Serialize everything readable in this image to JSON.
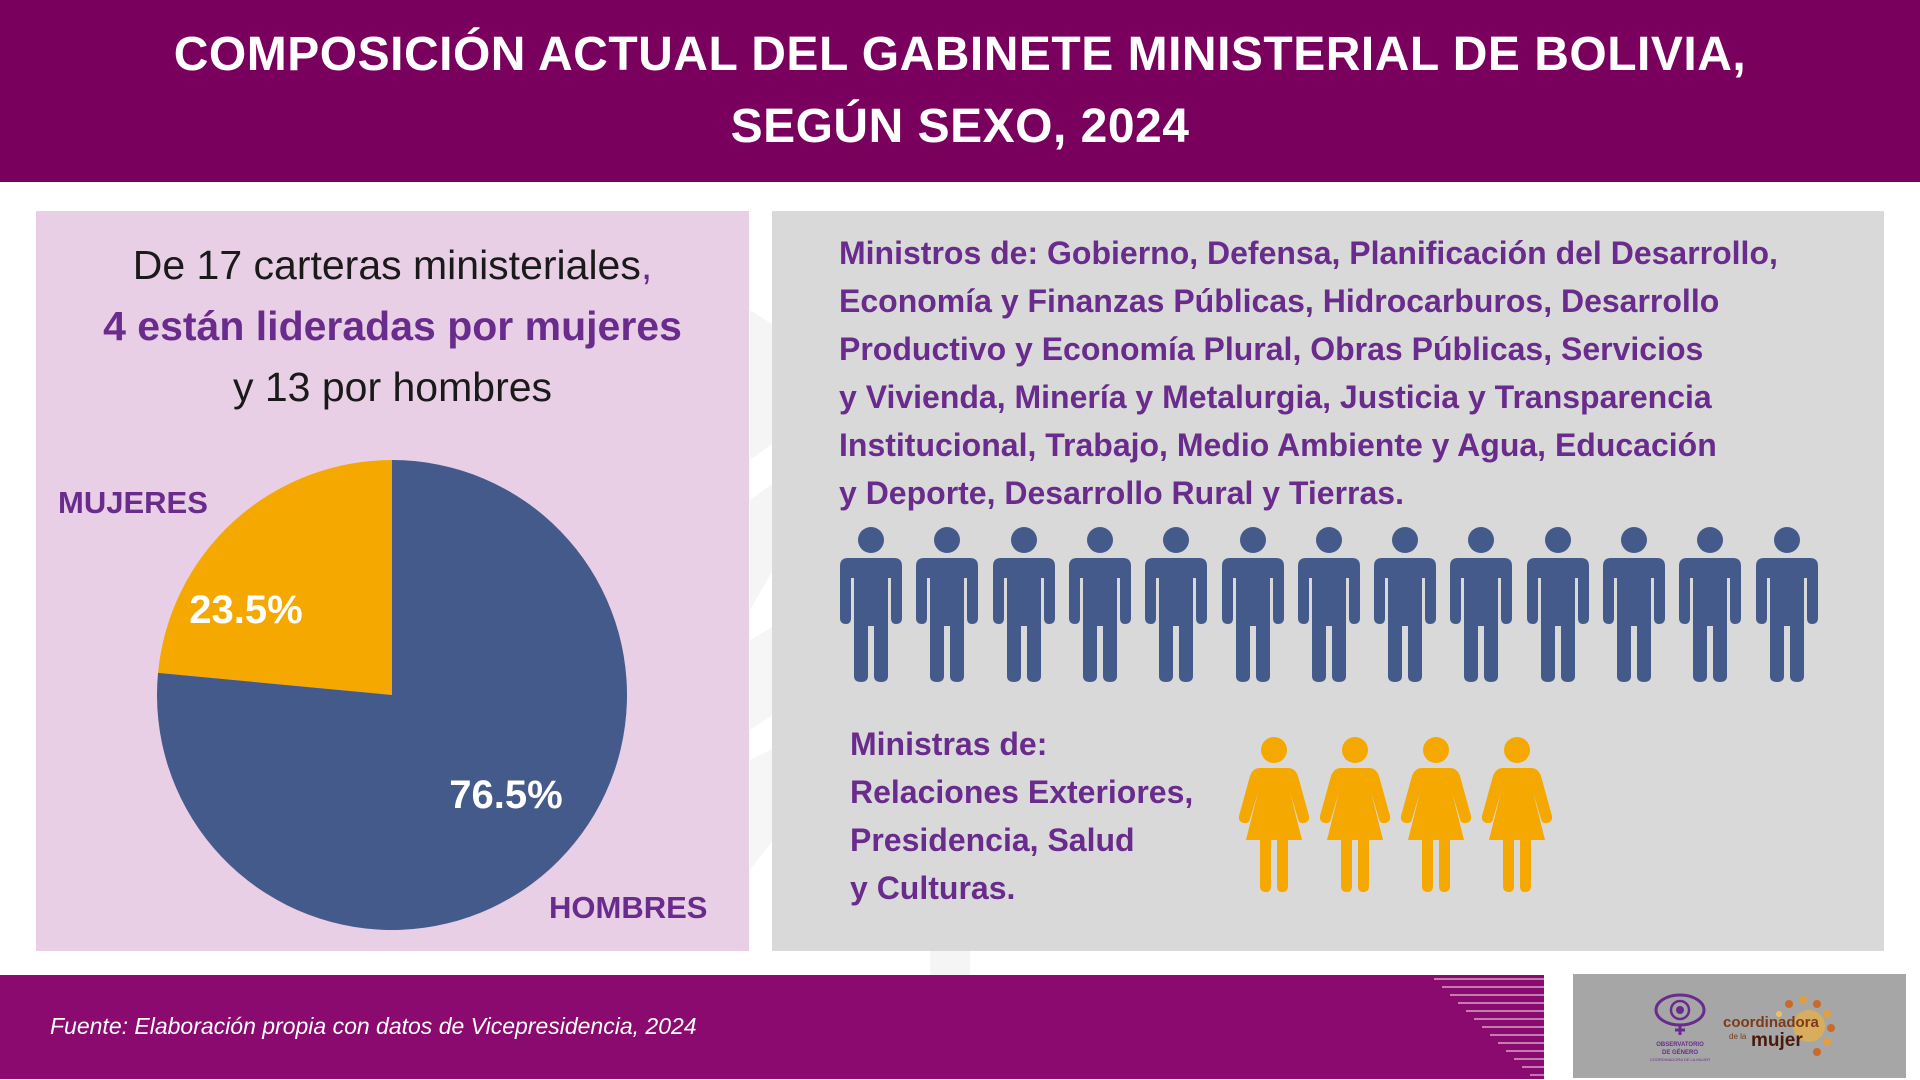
{
  "header": {
    "title_line1": "COMPOSICIÓN ACTUAL DEL GABINETE MINISTERIAL DE BOLIVIA,",
    "title_line2": "SEGÚN SEXO, 2024"
  },
  "summary": {
    "line1": "De 17 carteras ministeriales",
    "line1_comma": ",",
    "line2": "4 están lideradas por mujeres",
    "line3": "y 13 por hombres"
  },
  "chart_data": {
    "type": "pie",
    "slices": [
      {
        "label": "MUJERES",
        "value": 23.5,
        "value_label": "23.5%",
        "color": "#f5a800"
      },
      {
        "label": "HOMBRES",
        "value": 76.5,
        "value_label": "76.5%",
        "color": "#445a8a"
      }
    ],
    "total_portfolios": 17,
    "counts": {
      "mujeres": 4,
      "hombres": 13
    }
  },
  "ministers": {
    "lines": [
      "Ministros de: Gobierno, Defensa, Planificación del Desarrollo,",
      "Economía y Finanzas Públicas, Hidrocarburos, Desarrollo",
      "Productivo y Economía Plural, Obras Públicas, Servicios",
      "y Vivienda, Minería y Metalurgia, Justicia y Transparencia",
      "Institucional, Trabajo, Medio Ambiente y Agua, Educación",
      "y Deporte, Desarrollo Rural y Tierras."
    ],
    "icon_count": 13,
    "icon": "man-icon",
    "color": "#445a8a"
  },
  "ministras": {
    "lines": [
      "Ministras de:",
      "Relaciones Exteriores,",
      "Presidencia, Salud",
      "y Culturas."
    ],
    "icon_count": 4,
    "icon": "woman-icon",
    "color": "#f5a800"
  },
  "footer": {
    "source": "Fuente: Elaboración propia con datos de Vicepresidencia, 2024"
  },
  "logos": {
    "observatorio_lines": [
      "OBSERVATORIO",
      "DE GÉNERO",
      "COORDINADORA DE LA MUJER"
    ],
    "coordinadora_word": "coordinadora",
    "coordinadora_sub": "de la",
    "coordinadora_word2": "mujer"
  },
  "colors": {
    "brand_purple": "#7a005e",
    "text_purple": "#6a2c8c",
    "panel_pink": "#e8cfe6",
    "panel_gray": "#d9d9d9",
    "women_yellow": "#f5a800",
    "men_blue": "#445a8a"
  }
}
